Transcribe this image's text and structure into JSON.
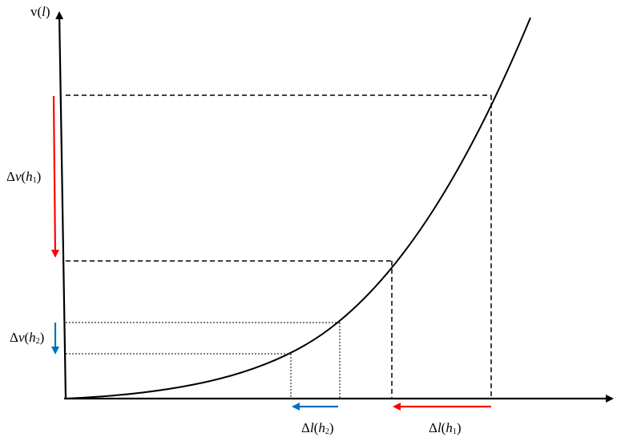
{
  "diagram": {
    "y_axis_label": {
      "prefix": "v(",
      "var": "l",
      "suffix": ")"
    },
    "delta_v_h1": {
      "delta": "Δ",
      "var": "v",
      "open": "(",
      "h": "h",
      "sub": "1",
      "close": ")"
    },
    "delta_v_h2": {
      "delta": "Δ",
      "var": "v",
      "open": "(",
      "h": "h",
      "sub": "2",
      "close": ")"
    },
    "delta_l_h2": {
      "delta": "Δ",
      "var": "l",
      "open": "(",
      "h": "h",
      "sub": "2",
      "close": ")"
    },
    "delta_l_h1": {
      "delta": "Δ",
      "var": "l",
      "open": "(",
      "h": "h",
      "sub": "1",
      "close": ")"
    }
  },
  "colors": {
    "axis": "#000000",
    "curve": "#000000",
    "h1_arrow": "#ff0000",
    "h2_arrow": "#0070c0"
  }
}
